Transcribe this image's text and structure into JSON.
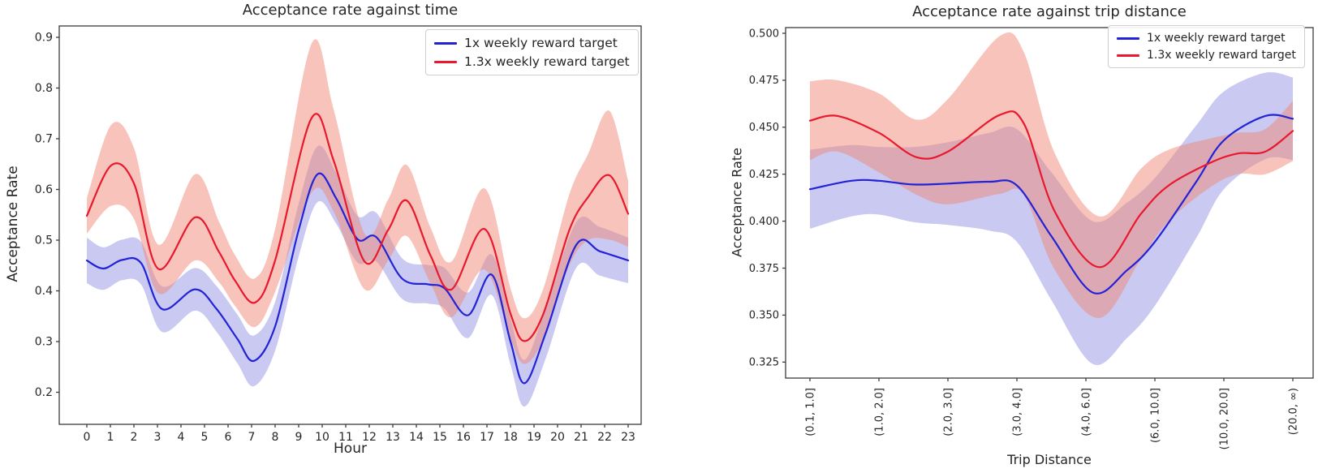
{
  "figure": {
    "background": "#ffffff",
    "spine_color": "#3b3b3b",
    "tick_label_color": "#262626"
  },
  "chart_data": [
    {
      "type": "line",
      "title": "Acceptance rate against time",
      "xlabel": "Hour",
      "ylabel": "Acceptance Rate",
      "x_ticks": [
        "0",
        "1",
        "2",
        "3",
        "4",
        "5",
        "6",
        "7",
        "8",
        "9",
        "10",
        "11",
        "12",
        "13",
        "14",
        "15",
        "16",
        "17",
        "18",
        "19",
        "20",
        "21",
        "22",
        "23"
      ],
      "y_ticks": [
        "0.2",
        "0.3",
        "0.4",
        "0.5",
        "0.6",
        "0.7",
        "0.8",
        "0.9"
      ],
      "xlim": [
        -1.2,
        23.4
      ],
      "ylim": [
        0.137,
        0.922
      ],
      "grid": false,
      "legend_position": "upper right",
      "series": [
        {
          "name": "1x weekly reward target",
          "color": "#2222d6",
          "band_color": "#8888e0",
          "band_opacity": 0.45,
          "points": [
            [
              0,
              0.46,
              0.045
            ],
            [
              0.7,
              0.444,
              0.042
            ],
            [
              1.5,
              0.461,
              0.04
            ],
            [
              2.3,
              0.455,
              0.042
            ],
            [
              3.2,
              0.364,
              0.045
            ],
            [
              4.6,
              0.403,
              0.042
            ],
            [
              5.5,
              0.365,
              0.045
            ],
            [
              6.4,
              0.305,
              0.048
            ],
            [
              7.1,
              0.262,
              0.05
            ],
            [
              8,
              0.33,
              0.048
            ],
            [
              9,
              0.52,
              0.052
            ],
            [
              9.8,
              0.63,
              0.055
            ],
            [
              10.6,
              0.582,
              0.05
            ],
            [
              11.5,
              0.502,
              0.046
            ],
            [
              12.3,
              0.506,
              0.048
            ],
            [
              13.4,
              0.424,
              0.04
            ],
            [
              14.5,
              0.413,
              0.038
            ],
            [
              15.2,
              0.405,
              0.04
            ],
            [
              16.2,
              0.352,
              0.045
            ],
            [
              17.2,
              0.432,
              0.04
            ],
            [
              18,
              0.3,
              0.045
            ],
            [
              18.6,
              0.218,
              0.046
            ],
            [
              19.5,
              0.317,
              0.05
            ],
            [
              20.8,
              0.491,
              0.045
            ],
            [
              21.8,
              0.478,
              0.048
            ],
            [
              23,
              0.46,
              0.045
            ]
          ]
        },
        {
          "name": "1.3x weekly reward target",
          "color": "#e8182d",
          "band_color": "#f08878",
          "band_opacity": 0.5,
          "points": [
            [
              0,
              0.548,
              0.035
            ],
            [
              1.05,
              0.648,
              0.08
            ],
            [
              2,
              0.612,
              0.07
            ],
            [
              3.05,
              0.443,
              0.048
            ],
            [
              4.6,
              0.545,
              0.085
            ],
            [
              5.6,
              0.478,
              0.06
            ],
            [
              6.3,
              0.42,
              0.05
            ],
            [
              7.15,
              0.377,
              0.048
            ],
            [
              8,
              0.46,
              0.062
            ],
            [
              9.55,
              0.741,
              0.147
            ],
            [
              10.5,
              0.655,
              0.1
            ],
            [
              11.8,
              0.458,
              0.055
            ],
            [
              12.8,
              0.52,
              0.06
            ],
            [
              13.6,
              0.578,
              0.07
            ],
            [
              14.6,
              0.47,
              0.055
            ],
            [
              15.5,
              0.403,
              0.055
            ],
            [
              16.9,
              0.522,
              0.08
            ],
            [
              18,
              0.355,
              0.05
            ],
            [
              18.6,
              0.301,
              0.045
            ],
            [
              19.4,
              0.355,
              0.05
            ],
            [
              20.5,
              0.52,
              0.07
            ],
            [
              21.3,
              0.585,
              0.085
            ],
            [
              22.2,
              0.628,
              0.127
            ],
            [
              23,
              0.552,
              0.065
            ]
          ]
        }
      ]
    },
    {
      "type": "line",
      "title": "Acceptance rate against trip distance",
      "xlabel": "Trip Distance",
      "ylabel": "Acceptance Rate",
      "categories": [
        "(0.1, 1.0]",
        "(1.0, 2.0]",
        "(2.0, 3.0]",
        "(3.0, 4.0]",
        "(4.0, 6.0]",
        "(6.0, 10.0]",
        "(10.0, 20.0]",
        "(20.0, ∞)"
      ],
      "x_ticks": [
        "(0.1, 1.0]",
        "(1.0, 2.0]",
        "(2.0, 3.0]",
        "(3.0, 4.0]",
        "(4.0, 6.0]",
        "(6.0, 10.0]",
        "(10.0, 20.0]",
        "(20.0, ∞)"
      ],
      "y_ticks": [
        "0.325",
        "0.350",
        "0.375",
        "0.400",
        "0.425",
        "0.450",
        "0.475",
        "0.500"
      ],
      "xlim": [
        0.65,
        8.3
      ],
      "ylim": [
        0.317,
        0.503
      ],
      "grid": false,
      "legend_position": "upper right",
      "series": [
        {
          "name": "1x weekly reward target",
          "color": "#2222d6",
          "band_color": "#8888e0",
          "band_opacity": 0.45,
          "points": [
            [
              1,
              0.417,
              0.021
            ],
            [
              1.6,
              0.4215,
              0.019
            ],
            [
              2,
              0.4215,
              0.018
            ],
            [
              2.5,
              0.4195,
              0.02
            ],
            [
              3,
              0.42,
              0.022
            ],
            [
              3.6,
              0.421,
              0.026
            ],
            [
              4,
              0.419,
              0.03
            ],
            [
              4.5,
              0.392,
              0.034
            ],
            [
              5.1,
              0.362,
              0.038
            ],
            [
              5.6,
              0.374,
              0.036
            ],
            [
              6,
              0.389,
              0.034
            ],
            [
              6.6,
              0.421,
              0.03
            ],
            [
              7,
              0.443,
              0.026
            ],
            [
              7.6,
              0.456,
              0.023
            ],
            [
              8,
              0.4545,
              0.022
            ]
          ]
        },
        {
          "name": "1.3x weekly reward target",
          "color": "#e8182d",
          "band_color": "#f08878",
          "band_opacity": 0.5,
          "points": [
            [
              1,
              0.4535,
              0.021
            ],
            [
              1.4,
              0.456,
              0.019
            ],
            [
              2,
              0.447,
              0.021
            ],
            [
              2.55,
              0.434,
              0.02
            ],
            [
              3,
              0.437,
              0.028
            ],
            [
              3.75,
              0.4565,
              0.042
            ],
            [
              4.1,
              0.452,
              0.038
            ],
            [
              4.55,
              0.405,
              0.031
            ],
            [
              5.2,
              0.3755,
              0.027
            ],
            [
              5.8,
              0.404,
              0.024
            ],
            [
              6.2,
              0.419,
              0.019
            ],
            [
              6.8,
              0.431,
              0.013
            ],
            [
              7.2,
              0.436,
              0.011
            ],
            [
              7.6,
              0.437,
              0.012
            ],
            [
              8,
              0.448,
              0.016
            ]
          ]
        }
      ]
    }
  ]
}
